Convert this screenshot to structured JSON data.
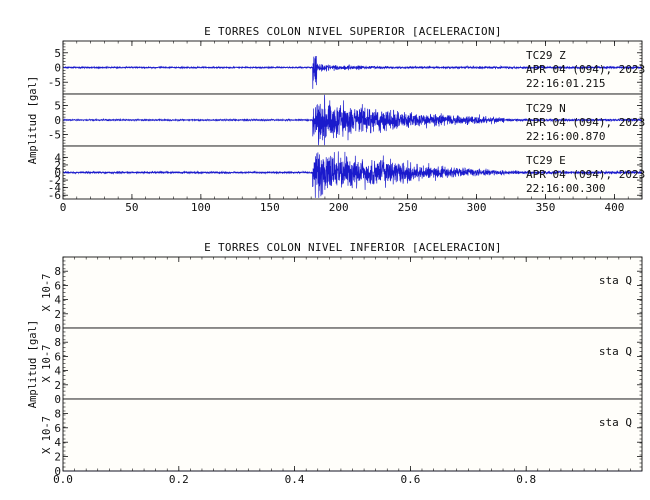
{
  "colors": {
    "background": "#fffefa",
    "trace": "#1a1acc",
    "axis": "#111111"
  },
  "chart_data": [
    {
      "type": "line",
      "title": "E TORRES COLON NIVEL SUPERIOR [ACELERACION]",
      "ylabel": "Amplitud [gal]",
      "xlim": [
        0,
        420
      ],
      "x_ticks": [
        "0",
        "50",
        "100",
        "150",
        "200",
        "250",
        "300",
        "350",
        "400"
      ],
      "panels": [
        {
          "channel": "TC29 Z",
          "date": "APR 04 (094), 2023",
          "time": "22:16:01.215",
          "ylim": [
            -9,
            9
          ],
          "y_ticks": [
            "5",
            "0",
            "-5"
          ],
          "onset_s": 181,
          "peak_gal": 8,
          "coda_gal": 1.5,
          "late_gal": 0.3,
          "decay_s": 18,
          "end_s": 260
        },
        {
          "channel": "TC29 N",
          "date": "APR 04 (094), 2023",
          "time": "22:16:00.870",
          "ylim": [
            -9,
            9
          ],
          "y_ticks": [
            "5",
            "0",
            "-5"
          ],
          "onset_s": 181,
          "peak_gal": 4.5,
          "coda_gal": 7,
          "late_gal": 2.5,
          "decay_s": 60,
          "end_s": 320
        },
        {
          "channel": "TC29 E",
          "date": "APR 04 (094), 2023",
          "time": "22:16:00.300",
          "ylim": [
            -7,
            7
          ],
          "y_ticks": [
            "4",
            "2",
            "0",
            "-2",
            "-4",
            "-6"
          ],
          "onset_s": 181,
          "peak_gal": 5,
          "coda_gal": 6,
          "late_gal": 3,
          "decay_s": 50,
          "end_s": 330
        }
      ]
    },
    {
      "type": "line",
      "title": "E TORRES COLON NIVEL INFERIOR [ACELERACION]",
      "ylabel": "Amplitud [gal]",
      "y_multiplier": "X 10-7",
      "xlim": [
        0,
        1
      ],
      "x_ticks": [
        "0.0",
        "0.2",
        "0.4",
        "0.6",
        "0.8"
      ],
      "panels": [
        {
          "channel": "sta Q",
          "ylim": [
            0,
            10
          ],
          "y_ticks": [
            "8",
            "6",
            "4",
            "2",
            "0"
          ],
          "values": [
            0,
            0
          ]
        },
        {
          "channel": "sta Q",
          "ylim": [
            0,
            10
          ],
          "y_ticks": [
            "8",
            "6",
            "4",
            "2",
            "0"
          ],
          "values": [
            0,
            0
          ]
        },
        {
          "channel": "sta Q",
          "ylim": [
            0,
            10
          ],
          "y_ticks": [
            "8",
            "6",
            "4",
            "2",
            "0"
          ],
          "values": [
            0,
            0
          ]
        }
      ]
    }
  ]
}
